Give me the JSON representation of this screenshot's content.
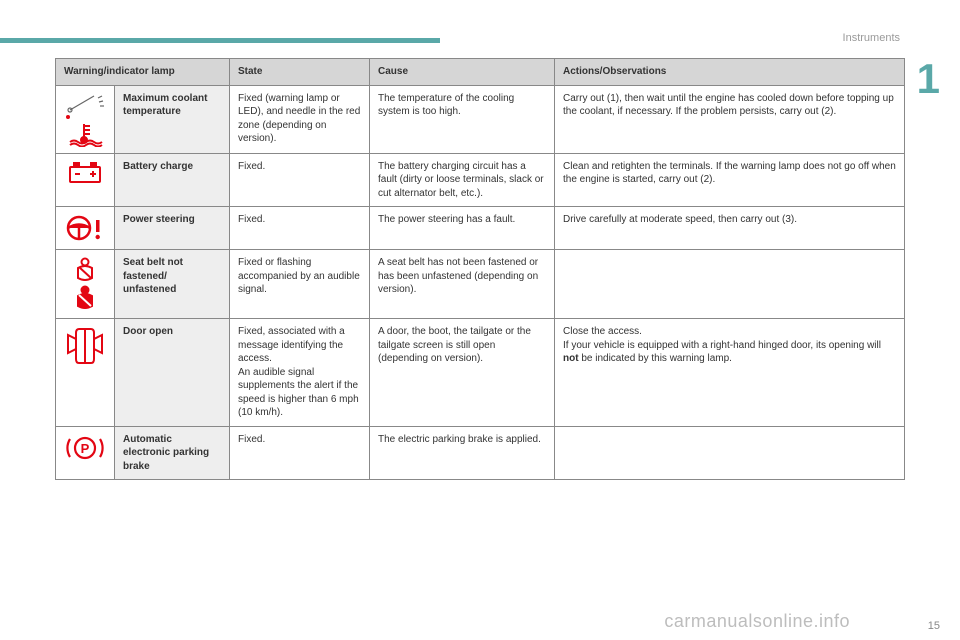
{
  "section": "Instruments",
  "chapter": "1",
  "watermark": "carmanualsonline.info",
  "page_number": "15",
  "colors": {
    "teal": "#5aa8a8",
    "red": "#e30613",
    "header_bg": "#d6d6d6",
    "name_bg": "#eeeeee",
    "border": "#888888",
    "text": "#333333",
    "grey_text": "#9a9a9a"
  },
  "table": {
    "headers": {
      "lamp": "Warning/indicator lamp",
      "state": "State",
      "cause": "Cause",
      "actions": "Actions/Observations"
    },
    "rows": [
      {
        "icon": "coolant",
        "name": "Maximum coolant temperature",
        "state": "Fixed (warning lamp or LED), and needle in the red zone (depending on version).",
        "cause": "The temperature of the cooling system is too high.",
        "actions": "Carry out (1), then wait until the engine has cooled down before topping up the coolant, if necessary. If the problem persists, carry out (2)."
      },
      {
        "icon": "battery",
        "name": "Battery charge",
        "state": "Fixed.",
        "cause": "The battery charging circuit has a fault (dirty or loose terminals, slack or cut alternator belt, etc.).",
        "actions": "Clean and retighten the terminals. If the warning lamp does not go off when the engine is started, carry out (2)."
      },
      {
        "icon": "steering",
        "name": "Power steering",
        "state": "Fixed.",
        "cause": "The power steering has a fault.",
        "actions": "Drive carefully at moderate speed, then carry out (3)."
      },
      {
        "icon": "seatbelt",
        "name": "Seat belt not fastened/ unfastened",
        "state": "Fixed or flashing accompanied by an audible signal.",
        "cause": "A seat belt has not been fastened or has been unfastened (depending on version).",
        "actions": ""
      },
      {
        "icon": "door",
        "name": "Door open",
        "state": "Fixed, associated with a message identifying the access.\nAn audible signal supplements the alert if the speed is higher than 6 mph (10 km/h).",
        "cause": "A door, the boot, the tailgate or the tailgate screen is still open (depending on version).",
        "actions_html": "Close the access.<br>If your vehicle is equipped with a right-hand hinged door, its opening will <b>not</b> be indicated by this warning lamp."
      },
      {
        "icon": "parking",
        "name": "Automatic electronic parking brake",
        "state": "Fixed.",
        "cause": "The electric parking brake is applied.",
        "actions": ""
      }
    ]
  }
}
